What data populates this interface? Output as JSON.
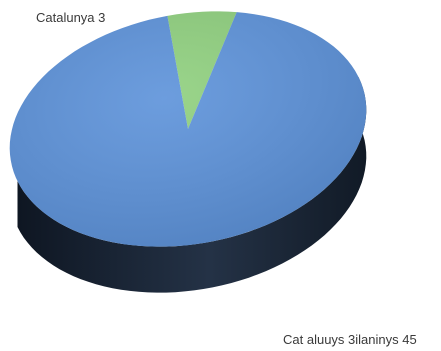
{
  "chart_data": {
    "type": "pie",
    "style": "3d-tilted",
    "start_angle_deg": 0,
    "slices": [
      {
        "label": "Catalunya 3",
        "value": 3,
        "color": "#8fd07e"
      },
      {
        "label": "Cat aluuys 3ilaninys 45",
        "value": 45,
        "color": "#5c92da"
      }
    ],
    "edge_color": "#1a2330"
  }
}
